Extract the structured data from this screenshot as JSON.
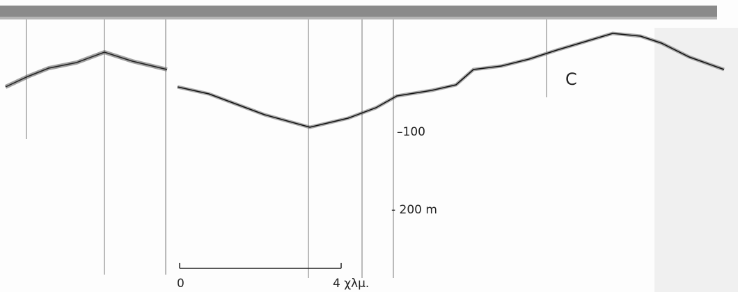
{
  "labels": {
    "panel": "C",
    "depth_100": "–100",
    "depth_200": "- 200 m",
    "scale_start": "0",
    "scale_end": "4 χλμ."
  }
}
